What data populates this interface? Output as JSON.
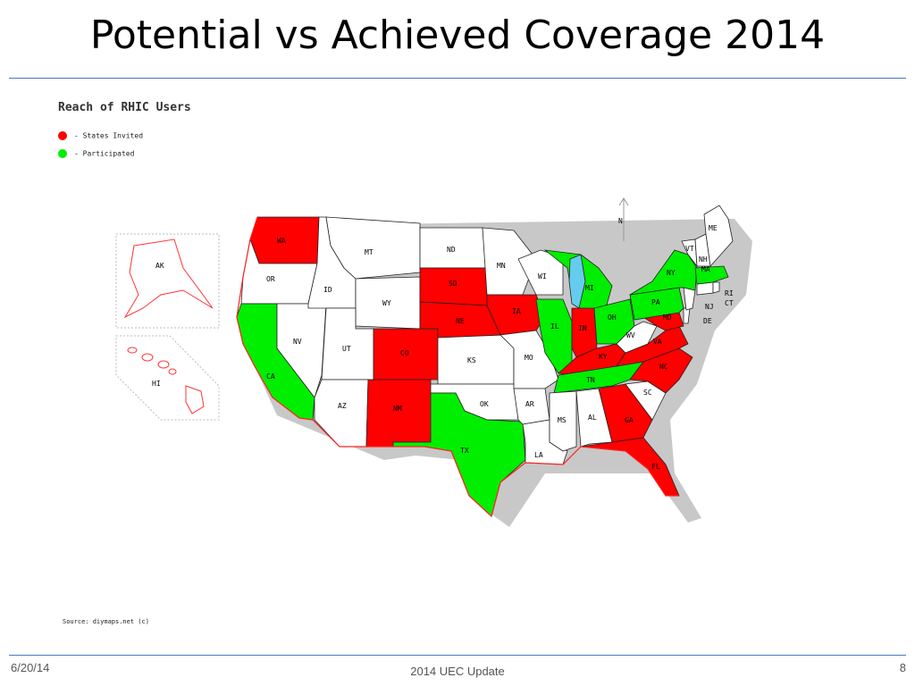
{
  "title": "Potential vs Achieved Coverage 2014",
  "map": {
    "heading": "Reach of RHIC Users",
    "legend": [
      {
        "label": "- States Invited",
        "color": "#ff0000"
      },
      {
        "label": "- Participated",
        "color": "#00ee00"
      }
    ],
    "source": "Source: diymaps.net (c)",
    "colors": {
      "invited": "#ff0000",
      "participated": "#00ee00",
      "none": "#ffffff",
      "lake": "#66ccee"
    },
    "states": {
      "WA": "invited",
      "OR": "none",
      "CA": "participated",
      "NV": "none",
      "ID": "none",
      "MT": "none",
      "WY": "none",
      "UT": "none",
      "AZ": "none",
      "CO": "invited",
      "NM": "invited",
      "ND": "none",
      "SD": "invited",
      "NE": "invited",
      "KS": "none",
      "OK": "none",
      "TX": "participated",
      "MN": "none",
      "IA": "invited",
      "MO": "none",
      "AR": "none",
      "LA": "none",
      "WI": "none",
      "IL": "participated",
      "MI": "participated",
      "IN": "invited",
      "OH": "participated",
      "KY": "invited",
      "TN": "participated",
      "MS": "none",
      "AL": "none",
      "GA": "invited",
      "FL": "invited",
      "SC": "none",
      "NC": "invited",
      "VA": "invited",
      "WV": "none",
      "MD": "invited",
      "DE": "none",
      "NJ": "none",
      "PA": "participated",
      "NY": "participated",
      "CT": "none",
      "RI": "none",
      "MA": "participated",
      "VT": "none",
      "NH": "none",
      "ME": "none",
      "AK": "none",
      "HI": "none"
    },
    "labels": {
      "WA": "WA",
      "OR": "OR",
      "CA": "CA",
      "NV": "NV",
      "ID": "ID",
      "MT": "MT",
      "WY": "WY",
      "UT": "UT",
      "AZ": "AZ",
      "CO": "CO",
      "NM": "NM",
      "ND": "ND",
      "SD": "SD",
      "NE": "NE",
      "KS": "KS",
      "OK": "OK",
      "TX": "TX",
      "MN": "MN",
      "IA": "IA",
      "MO": "MO",
      "AR": "AR",
      "LA": "LA",
      "WI": "WI",
      "IL": "IL",
      "MI": "MI",
      "IN": "IN",
      "OH": "OH",
      "KY": "KY",
      "TN": "TN",
      "MS": "MS",
      "AL": "AL",
      "GA": "GA",
      "FL": "FL",
      "SC": "SC",
      "NC": "NC",
      "VA": "VA",
      "WV": "WV",
      "MD": "MD",
      "DE": "DE",
      "NJ": "NJ",
      "PA": "PA",
      "NY": "NY",
      "CT": "CT",
      "RI": "RI",
      "MA": "MA",
      "VT": "VT",
      "NH": "NH",
      "ME": "ME",
      "AK": "AK",
      "HI": "HI"
    },
    "compass": "N"
  },
  "footer": {
    "date": "6/20/14",
    "center": "2014 UEC Update",
    "page": "8"
  }
}
